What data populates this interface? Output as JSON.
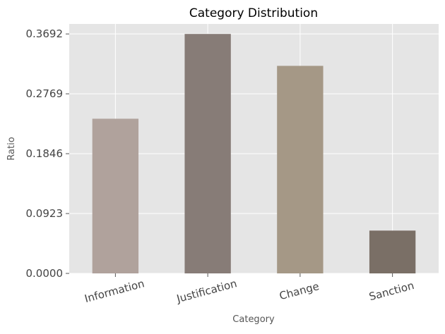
{
  "chart_data": {
    "type": "bar",
    "title": "Category Distribution",
    "xlabel": "Category",
    "ylabel": "Ratio",
    "categories": [
      "Information",
      "Justification",
      "Change",
      "Sanction"
    ],
    "values": [
      0.2385,
      0.3692,
      0.32,
      0.066
    ],
    "bar_colors": [
      "#b0a29c",
      "#877c77",
      "#a59886",
      "#7a6f66"
    ],
    "yticks": [
      "0.0000",
      "0.0923",
      "0.1846",
      "0.2769",
      "0.3692"
    ],
    "ylim": [
      0,
      0.3846
    ],
    "grid": true,
    "plot_background": "#e5e5e5",
    "grid_color": "#ffffff"
  }
}
